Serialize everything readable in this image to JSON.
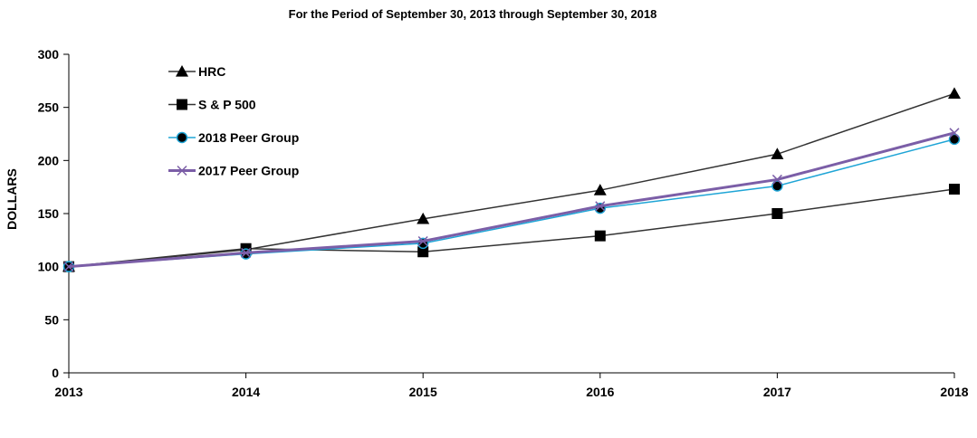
{
  "chart_data": {
    "type": "line",
    "subtitle": "For the Period of September 30, 2013 through September 30, 2018",
    "ylabel": "DOLLARS",
    "xlabel": "",
    "x": [
      "2013",
      "2014",
      "2015",
      "2016",
      "2017",
      "2018"
    ],
    "ylim": [
      0,
      300
    ],
    "yticks": [
      "0",
      "50",
      "100",
      "150",
      "200",
      "250",
      "300"
    ],
    "legend_position": "top-left",
    "grid": false,
    "series": [
      {
        "name": "HRC",
        "values": [
          100,
          116,
          145,
          172,
          206,
          263
        ],
        "color": "#333333",
        "marker": "triangle"
      },
      {
        "name": "S & P 500",
        "values": [
          100,
          117,
          114,
          129,
          150,
          173
        ],
        "color": "#333333",
        "marker": "square"
      },
      {
        "name": "2018 Peer Group",
        "values": [
          100,
          112,
          122,
          155,
          176,
          220
        ],
        "color": "#1fa5d6",
        "marker": "circle"
      },
      {
        "name": "2017 Peer Group",
        "values": [
          100,
          113,
          124,
          157,
          182,
          226
        ],
        "color": "#7b5ea7",
        "marker": "x"
      }
    ]
  }
}
